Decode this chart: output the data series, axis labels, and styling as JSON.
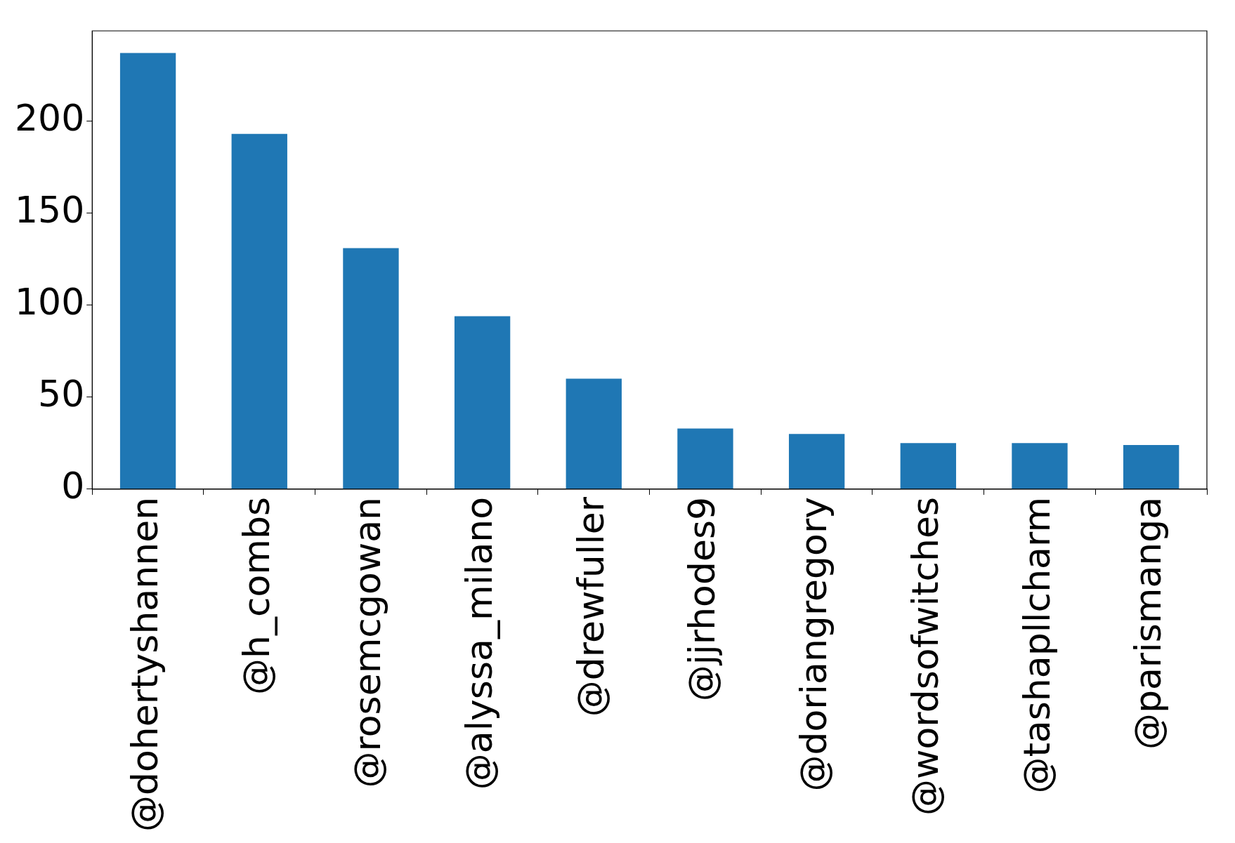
{
  "chart_data": {
    "type": "bar",
    "categories": [
      "@dohertyshannen",
      "@h_combs",
      "@rosemcgowan",
      "@alyssa_milano",
      "@drewfuller",
      "@jjrhodes9",
      "@doriangregory",
      "@wordsofwitches",
      "@tashapllcharm",
      "@parismanga"
    ],
    "values": [
      237,
      193,
      131,
      94,
      60,
      33,
      30,
      25,
      25,
      24
    ],
    "color": "#1f77b4",
    "ylim": [
      0,
      249
    ],
    "yticks": [
      0,
      50,
      100,
      150,
      200
    ],
    "grid": false,
    "legend": false
  }
}
